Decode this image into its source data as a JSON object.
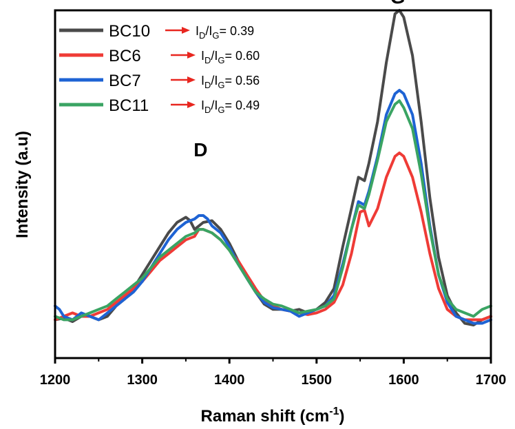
{
  "chart_data": {
    "type": "line",
    "xlabel": "Raman shift (cm",
    "xlabel_superscript": "-1",
    "xlabel_close": ")",
    "ylabel": "Intensity (a.u)",
    "xlim": [
      1200,
      1700
    ],
    "ylim": [
      0,
      1
    ],
    "x_ticks": [
      "1200",
      "1300",
      "1400",
      "1500",
      "1600",
      "1700"
    ],
    "y_ticks_labeled": false,
    "grid": false,
    "legend_position": "top-left",
    "ratio_prefix": "I",
    "ratio_sub_d": "D",
    "ratio_slash": "/I",
    "ratio_sub_g": "G",
    "ratio_eq": "= ",
    "annotations": [
      {
        "text": "D",
        "x": 1367,
        "y": 0.58
      },
      {
        "text": "G",
        "x": 1593,
        "y": 1.02
      }
    ],
    "series": [
      {
        "name": "BC10",
        "ratio": "0.39",
        "color": "#4a4a4a",
        "points": [
          [
            1200,
            0.11
          ],
          [
            1210,
            0.115
          ],
          [
            1220,
            0.105
          ],
          [
            1230,
            0.12
          ],
          [
            1240,
            0.12
          ],
          [
            1250,
            0.11
          ],
          [
            1260,
            0.12
          ],
          [
            1270,
            0.15
          ],
          [
            1280,
            0.17
          ],
          [
            1290,
            0.2
          ],
          [
            1300,
            0.24
          ],
          [
            1310,
            0.28
          ],
          [
            1320,
            0.32
          ],
          [
            1330,
            0.36
          ],
          [
            1340,
            0.39
          ],
          [
            1350,
            0.405
          ],
          [
            1355,
            0.395
          ],
          [
            1360,
            0.37
          ],
          [
            1365,
            0.38
          ],
          [
            1370,
            0.39
          ],
          [
            1380,
            0.395
          ],
          [
            1390,
            0.37
          ],
          [
            1400,
            0.33
          ],
          [
            1410,
            0.28
          ],
          [
            1420,
            0.23
          ],
          [
            1430,
            0.19
          ],
          [
            1440,
            0.155
          ],
          [
            1450,
            0.14
          ],
          [
            1460,
            0.14
          ],
          [
            1470,
            0.135
          ],
          [
            1480,
            0.14
          ],
          [
            1490,
            0.13
          ],
          [
            1500,
            0.14
          ],
          [
            1510,
            0.16
          ],
          [
            1520,
            0.2
          ],
          [
            1530,
            0.32
          ],
          [
            1540,
            0.43
          ],
          [
            1548,
            0.52
          ],
          [
            1555,
            0.51
          ],
          [
            1560,
            0.56
          ],
          [
            1570,
            0.68
          ],
          [
            1580,
            0.85
          ],
          [
            1590,
            0.99
          ],
          [
            1595,
            1.0
          ],
          [
            1600,
            0.98
          ],
          [
            1610,
            0.87
          ],
          [
            1620,
            0.68
          ],
          [
            1630,
            0.46
          ],
          [
            1640,
            0.29
          ],
          [
            1650,
            0.18
          ],
          [
            1660,
            0.13
          ],
          [
            1670,
            0.1
          ],
          [
            1680,
            0.095
          ],
          [
            1690,
            0.11
          ],
          [
            1700,
            0.12
          ]
        ]
      },
      {
        "name": "BC6",
        "ratio": "0.60",
        "color": "#ef3b36",
        "points": [
          [
            1200,
            0.11
          ],
          [
            1210,
            0.12
          ],
          [
            1220,
            0.13
          ],
          [
            1230,
            0.12
          ],
          [
            1240,
            0.12
          ],
          [
            1250,
            0.13
          ],
          [
            1260,
            0.14
          ],
          [
            1270,
            0.16
          ],
          [
            1280,
            0.18
          ],
          [
            1290,
            0.2
          ],
          [
            1300,
            0.22
          ],
          [
            1310,
            0.25
          ],
          [
            1320,
            0.28
          ],
          [
            1330,
            0.3
          ],
          [
            1340,
            0.32
          ],
          [
            1350,
            0.34
          ],
          [
            1360,
            0.35
          ],
          [
            1365,
            0.37
          ],
          [
            1370,
            0.37
          ],
          [
            1380,
            0.36
          ],
          [
            1390,
            0.34
          ],
          [
            1400,
            0.31
          ],
          [
            1410,
            0.28
          ],
          [
            1420,
            0.24
          ],
          [
            1430,
            0.2
          ],
          [
            1440,
            0.165
          ],
          [
            1450,
            0.15
          ],
          [
            1460,
            0.14
          ],
          [
            1470,
            0.135
          ],
          [
            1480,
            0.13
          ],
          [
            1490,
            0.125
          ],
          [
            1500,
            0.13
          ],
          [
            1510,
            0.14
          ],
          [
            1520,
            0.16
          ],
          [
            1530,
            0.21
          ],
          [
            1540,
            0.3
          ],
          [
            1550,
            0.42
          ],
          [
            1555,
            0.425
          ],
          [
            1560,
            0.38
          ],
          [
            1570,
            0.43
          ],
          [
            1580,
            0.52
          ],
          [
            1590,
            0.58
          ],
          [
            1595,
            0.59
          ],
          [
            1600,
            0.58
          ],
          [
            1610,
            0.52
          ],
          [
            1620,
            0.42
          ],
          [
            1630,
            0.3
          ],
          [
            1640,
            0.2
          ],
          [
            1650,
            0.14
          ],
          [
            1660,
            0.12
          ],
          [
            1670,
            0.11
          ],
          [
            1680,
            0.11
          ],
          [
            1690,
            0.11
          ],
          [
            1700,
            0.12
          ]
        ]
      },
      {
        "name": "BC7",
        "ratio": "0.56",
        "color": "#1e63d4",
        "points": [
          [
            1200,
            0.15
          ],
          [
            1205,
            0.14
          ],
          [
            1210,
            0.12
          ],
          [
            1220,
            0.11
          ],
          [
            1230,
            0.13
          ],
          [
            1240,
            0.12
          ],
          [
            1250,
            0.11
          ],
          [
            1260,
            0.13
          ],
          [
            1270,
            0.15
          ],
          [
            1280,
            0.17
          ],
          [
            1290,
            0.19
          ],
          [
            1300,
            0.22
          ],
          [
            1310,
            0.26
          ],
          [
            1320,
            0.3
          ],
          [
            1330,
            0.34
          ],
          [
            1340,
            0.37
          ],
          [
            1350,
            0.39
          ],
          [
            1360,
            0.4
          ],
          [
            1365,
            0.41
          ],
          [
            1370,
            0.41
          ],
          [
            1375,
            0.4
          ],
          [
            1380,
            0.38
          ],
          [
            1390,
            0.36
          ],
          [
            1400,
            0.32
          ],
          [
            1410,
            0.27
          ],
          [
            1420,
            0.23
          ],
          [
            1430,
            0.19
          ],
          [
            1440,
            0.16
          ],
          [
            1450,
            0.145
          ],
          [
            1460,
            0.14
          ],
          [
            1470,
            0.135
          ],
          [
            1480,
            0.12
          ],
          [
            1490,
            0.13
          ],
          [
            1500,
            0.14
          ],
          [
            1510,
            0.15
          ],
          [
            1520,
            0.18
          ],
          [
            1530,
            0.27
          ],
          [
            1540,
            0.37
          ],
          [
            1548,
            0.45
          ],
          [
            1555,
            0.44
          ],
          [
            1560,
            0.48
          ],
          [
            1570,
            0.58
          ],
          [
            1580,
            0.7
          ],
          [
            1590,
            0.76
          ],
          [
            1595,
            0.77
          ],
          [
            1600,
            0.76
          ],
          [
            1610,
            0.7
          ],
          [
            1620,
            0.56
          ],
          [
            1630,
            0.38
          ],
          [
            1640,
            0.24
          ],
          [
            1650,
            0.16
          ],
          [
            1660,
            0.12
          ],
          [
            1670,
            0.11
          ],
          [
            1680,
            0.1
          ],
          [
            1690,
            0.1
          ],
          [
            1700,
            0.11
          ]
        ]
      },
      {
        "name": "BC11",
        "ratio": "0.49",
        "color": "#3aa463",
        "points": [
          [
            1200,
            0.12
          ],
          [
            1210,
            0.11
          ],
          [
            1220,
            0.11
          ],
          [
            1230,
            0.12
          ],
          [
            1240,
            0.13
          ],
          [
            1250,
            0.14
          ],
          [
            1260,
            0.15
          ],
          [
            1270,
            0.17
          ],
          [
            1280,
            0.19
          ],
          [
            1290,
            0.21
          ],
          [
            1300,
            0.23
          ],
          [
            1310,
            0.26
          ],
          [
            1320,
            0.29
          ],
          [
            1330,
            0.31
          ],
          [
            1340,
            0.33
          ],
          [
            1350,
            0.35
          ],
          [
            1360,
            0.36
          ],
          [
            1365,
            0.37
          ],
          [
            1370,
            0.37
          ],
          [
            1380,
            0.36
          ],
          [
            1390,
            0.34
          ],
          [
            1400,
            0.31
          ],
          [
            1410,
            0.27
          ],
          [
            1420,
            0.23
          ],
          [
            1430,
            0.19
          ],
          [
            1440,
            0.17
          ],
          [
            1450,
            0.155
          ],
          [
            1460,
            0.15
          ],
          [
            1470,
            0.14
          ],
          [
            1480,
            0.13
          ],
          [
            1490,
            0.135
          ],
          [
            1500,
            0.14
          ],
          [
            1510,
            0.15
          ],
          [
            1520,
            0.17
          ],
          [
            1530,
            0.26
          ],
          [
            1540,
            0.37
          ],
          [
            1548,
            0.44
          ],
          [
            1555,
            0.43
          ],
          [
            1560,
            0.47
          ],
          [
            1570,
            0.57
          ],
          [
            1580,
            0.68
          ],
          [
            1590,
            0.73
          ],
          [
            1595,
            0.74
          ],
          [
            1600,
            0.72
          ],
          [
            1610,
            0.66
          ],
          [
            1620,
            0.53
          ],
          [
            1630,
            0.37
          ],
          [
            1640,
            0.24
          ],
          [
            1650,
            0.17
          ],
          [
            1660,
            0.14
          ],
          [
            1670,
            0.13
          ],
          [
            1680,
            0.12
          ],
          [
            1690,
            0.14
          ],
          [
            1700,
            0.15
          ]
        ]
      }
    ]
  }
}
